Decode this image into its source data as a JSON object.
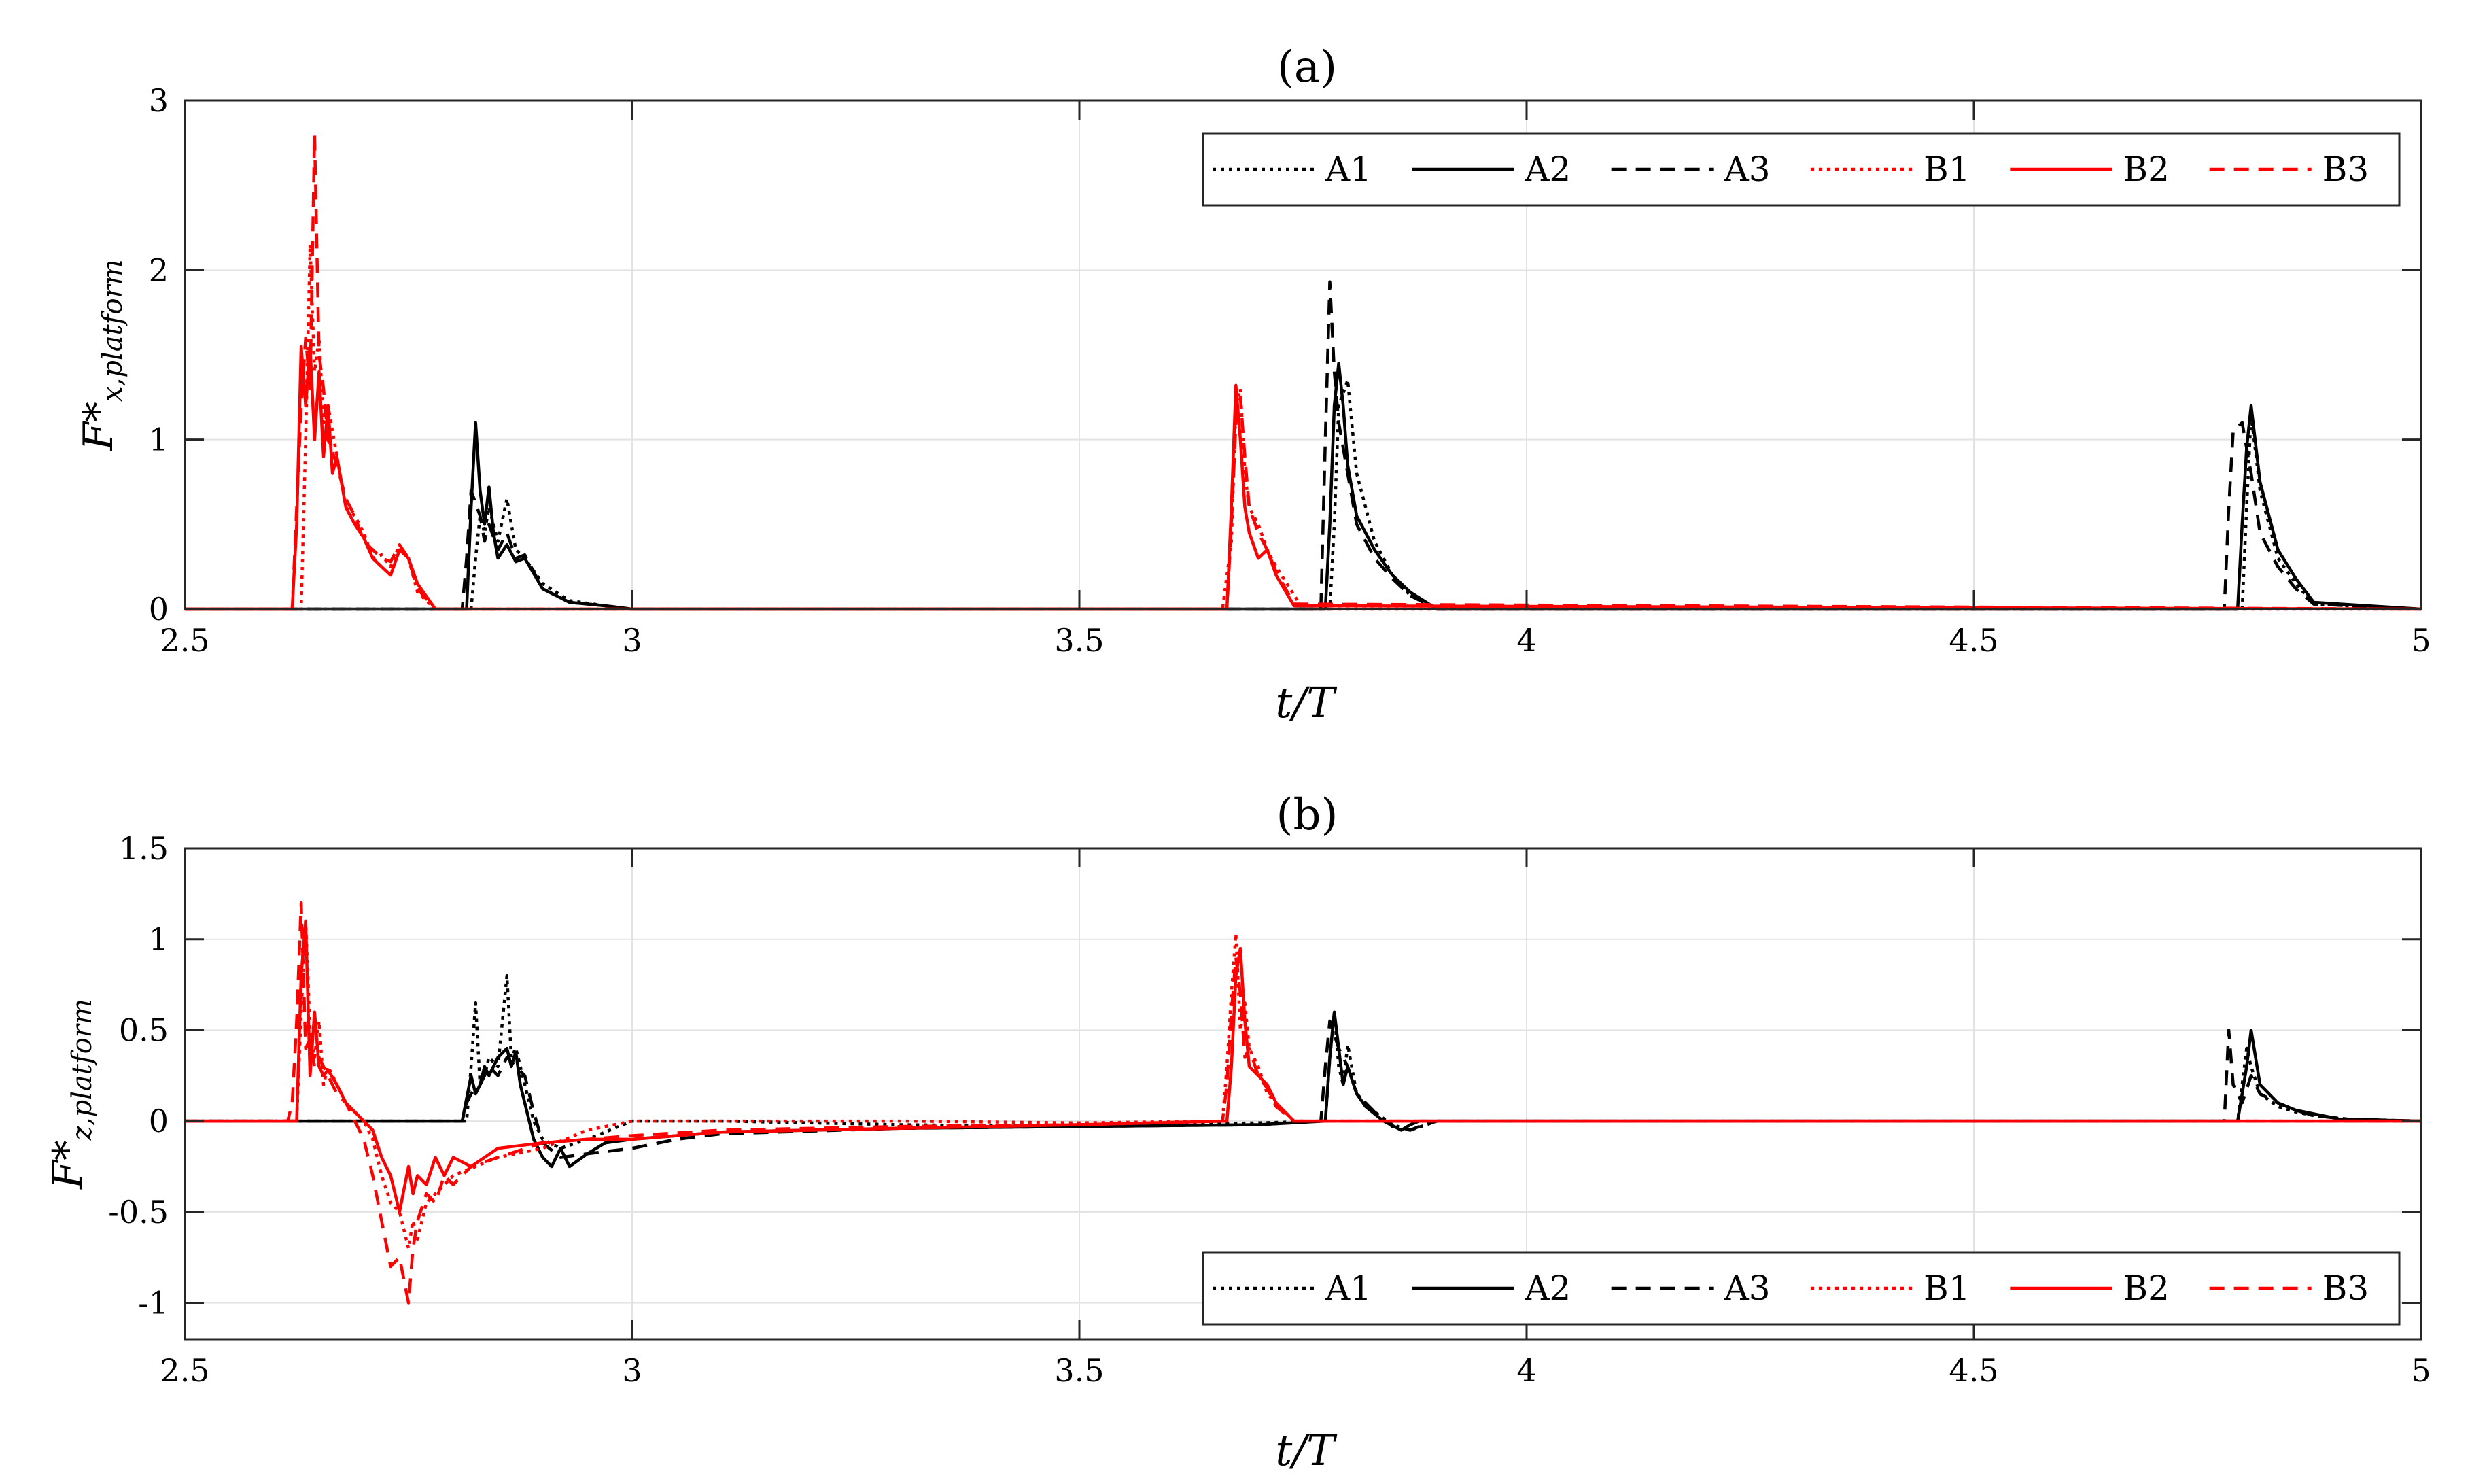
{
  "colors": {
    "black": "#000000",
    "red": "#ff0000",
    "grid": "#e3e3e3",
    "axis": "#262626"
  },
  "legend_entries": [
    {
      "label": "A1",
      "color": "#000000",
      "dash": "dotted"
    },
    {
      "label": "A2",
      "color": "#000000",
      "dash": "solid"
    },
    {
      "label": "A3",
      "color": "#000000",
      "dash": "dashed"
    },
    {
      "label": "B1",
      "color": "#ff0000",
      "dash": "dotted"
    },
    {
      "label": "B2",
      "color": "#ff0000",
      "dash": "solid"
    },
    {
      "label": "B3",
      "color": "#ff0000",
      "dash": "dashed"
    }
  ],
  "chart_data": [
    {
      "type": "line",
      "title": "(a)",
      "xlabel": "t/T",
      "ylabel_main": "F*",
      "ylabel_sub": "x,platform",
      "xlim": [
        2.5,
        5
      ],
      "ylim": [
        0,
        3
      ],
      "xticks": [
        2.5,
        3,
        3.5,
        4,
        4.5,
        5
      ],
      "xtick_labels": [
        "2.5",
        "3",
        "3.5",
        "4",
        "4.5",
        "5"
      ],
      "yticks": [
        0,
        1,
        2,
        3
      ],
      "ytick_labels": [
        "0",
        "1",
        "2",
        "3"
      ],
      "grid": true,
      "legend_position": "top-right",
      "series": [
        {
          "name": "A1",
          "x": [
            2.5,
            2.82,
            2.825,
            2.83,
            2.835,
            2.84,
            2.85,
            2.86,
            2.87,
            2.88,
            2.9,
            2.93,
            2.97,
            3.0,
            3.78,
            3.785,
            3.79,
            3.8,
            3.81,
            3.83,
            3.85,
            3.87,
            3.9,
            4.8,
            4.805,
            4.81,
            4.82,
            4.84,
            4.86,
            4.88,
            5.0
          ],
          "y": [
            0,
            0,
            0.3,
            0.55,
            0.45,
            0.6,
            0.4,
            0.65,
            0.35,
            0.3,
            0.15,
            0.05,
            0.02,
            0,
            0,
            0.5,
            1.2,
            1.35,
            0.8,
            0.4,
            0.2,
            0.08,
            0,
            0,
            0.6,
            1.15,
            0.7,
            0.3,
            0.15,
            0.03,
            0
          ]
        },
        {
          "name": "A2",
          "x": [
            2.5,
            2.815,
            2.82,
            2.825,
            2.83,
            2.835,
            2.84,
            2.845,
            2.85,
            2.86,
            2.87,
            2.88,
            2.9,
            2.93,
            2.97,
            3.0,
            3.775,
            3.78,
            3.785,
            3.79,
            3.795,
            3.8,
            3.81,
            3.83,
            3.85,
            3.87,
            3.9,
            4.795,
            4.8,
            4.805,
            4.81,
            4.82,
            4.84,
            4.86,
            4.88,
            5.0
          ],
          "y": [
            0,
            0,
            0.6,
            1.1,
            0.7,
            0.5,
            0.72,
            0.45,
            0.3,
            0.38,
            0.28,
            0.3,
            0.12,
            0.04,
            0.02,
            0,
            0,
            0.5,
            1.2,
            1.45,
            1.2,
            0.85,
            0.55,
            0.35,
            0.2,
            0.1,
            0,
            0,
            0.5,
            0.95,
            1.2,
            0.75,
            0.35,
            0.18,
            0.04,
            0
          ]
        },
        {
          "name": "A3",
          "x": [
            2.5,
            2.81,
            2.815,
            2.82,
            2.83,
            2.835,
            2.84,
            2.85,
            2.86,
            2.87,
            2.88,
            2.9,
            2.93,
            2.97,
            3.0,
            3.77,
            3.775,
            3.78,
            3.785,
            3.79,
            3.8,
            3.81,
            3.83,
            3.85,
            3.87,
            3.9,
            4.78,
            4.785,
            4.79,
            4.8,
            4.81,
            4.82,
            4.84,
            4.86,
            4.88,
            5.0
          ],
          "y": [
            0,
            0,
            0.3,
            0.7,
            0.55,
            0.4,
            0.5,
            0.35,
            0.45,
            0.3,
            0.32,
            0.12,
            0.04,
            0.02,
            0,
            0,
            1.0,
            1.93,
            1.4,
            1.1,
            0.8,
            0.5,
            0.3,
            0.18,
            0.08,
            0,
            0,
            0.6,
            1.05,
            1.1,
            0.8,
            0.45,
            0.25,
            0.12,
            0.03,
            0
          ]
        },
        {
          "name": "B1",
          "x": [
            2.5,
            2.63,
            2.635,
            2.64,
            2.645,
            2.65,
            2.655,
            2.66,
            2.67,
            2.68,
            2.69,
            2.7,
            2.71,
            2.72,
            2.73,
            2.74,
            2.75,
            2.76,
            2.78,
            3.66,
            3.67,
            3.675,
            3.68,
            3.685,
            3.69,
            3.7,
            3.71,
            3.72,
            3.75,
            5.0
          ],
          "y": [
            0,
            0,
            1.0,
            2.15,
            1.4,
            1.6,
            1.1,
            1.2,
            0.9,
            0.6,
            0.55,
            0.45,
            0.3,
            0.32,
            0.25,
            0.38,
            0.3,
            0.1,
            0,
            0,
            0.4,
            1.2,
            1.3,
            0.8,
            0.6,
            0.5,
            0.35,
            0.25,
            0,
            0
          ]
        },
        {
          "name": "B2",
          "x": [
            2.5,
            2.62,
            2.625,
            2.63,
            2.635,
            2.64,
            2.645,
            2.65,
            2.655,
            2.66,
            2.665,
            2.67,
            2.68,
            2.69,
            2.7,
            2.71,
            2.72,
            2.73,
            2.74,
            2.75,
            2.76,
            2.78,
            3.665,
            3.67,
            3.675,
            3.68,
            3.685,
            3.69,
            3.7,
            3.71,
            3.72,
            3.74,
            5.0
          ],
          "y": [
            0,
            0,
            0.5,
            1.55,
            1.2,
            1.55,
            1.0,
            1.4,
            0.9,
            1.2,
            0.8,
            0.9,
            0.6,
            0.5,
            0.42,
            0.3,
            0.25,
            0.2,
            0.35,
            0.3,
            0.15,
            0,
            0,
            0.6,
            1.32,
            1.0,
            0.6,
            0.45,
            0.3,
            0.35,
            0.2,
            0.02,
            0
          ]
        },
        {
          "name": "B3",
          "x": [
            2.5,
            2.62,
            2.63,
            2.635,
            2.64,
            2.645,
            2.65,
            2.655,
            2.66,
            2.67,
            2.68,
            2.69,
            2.7,
            2.71,
            2.72,
            2.73,
            2.74,
            2.75,
            2.76,
            2.78,
            3.665,
            3.67,
            3.675,
            3.68,
            3.685,
            3.69,
            3.7,
            3.71,
            3.72,
            3.74,
            5.0
          ],
          "y": [
            0,
            0,
            1.2,
            1.6,
            1.3,
            2.8,
            1.5,
            1.3,
            1.0,
            0.85,
            0.65,
            0.55,
            0.4,
            0.35,
            0.3,
            0.28,
            0.38,
            0.3,
            0.12,
            0,
            0,
            0.5,
            1.1,
            1.25,
            0.9,
            0.6,
            0.45,
            0.35,
            0.22,
            0.03,
            0
          ]
        }
      ]
    },
    {
      "type": "line",
      "title": "(b)",
      "xlabel": "t/T",
      "ylabel_main": "F*",
      "ylabel_sub": "z,platform",
      "xlim": [
        2.5,
        5
      ],
      "ylim": [
        -1.2,
        1.5
      ],
      "xticks": [
        2.5,
        3,
        3.5,
        4,
        4.5,
        5
      ],
      "xtick_labels": [
        "2.5",
        "3",
        "3.5",
        "4",
        "4.5",
        "5"
      ],
      "yticks": [
        -1,
        -0.5,
        0,
        0.5,
        1,
        1.5
      ],
      "ytick_labels": [
        "-1",
        "-0.5",
        "0",
        "0.5",
        "1",
        "1.5"
      ],
      "grid": true,
      "legend_position": "bottom-right",
      "series": [
        {
          "name": "A1",
          "x": [
            2.5,
            2.815,
            2.82,
            2.825,
            2.83,
            2.835,
            2.84,
            2.85,
            2.855,
            2.86,
            2.865,
            2.87,
            2.88,
            2.89,
            2.9,
            2.92,
            2.95,
            3.0,
            3.1,
            3.3,
            3.5,
            3.7,
            3.775,
            3.78,
            3.785,
            3.79,
            3.795,
            3.8,
            3.81,
            3.83,
            3.85,
            3.87,
            3.9,
            4.795,
            4.8,
            4.805,
            4.81,
            4.82,
            4.84,
            4.86,
            4.88,
            4.9,
            4.92,
            5.0
          ],
          "y": [
            0,
            0,
            0.3,
            0.65,
            0.2,
            0.25,
            0.35,
            0.3,
            0.55,
            0.8,
            0.35,
            0.4,
            0.2,
            0.0,
            -0.1,
            -0.15,
            -0.1,
            0.0,
            0.0,
            -0.02,
            -0.03,
            -0.01,
            0,
            0.35,
            0.6,
            0.3,
            0.2,
            0.42,
            0.15,
            0.05,
            -0.02,
            -0.05,
            0,
            0,
            0.2,
            0.4,
            0.3,
            0.15,
            0.08,
            0.05,
            0.03,
            0.02,
            0.01,
            0
          ]
        },
        {
          "name": "A2",
          "x": [
            2.5,
            2.81,
            2.82,
            2.825,
            2.83,
            2.835,
            2.84,
            2.85,
            2.86,
            2.865,
            2.87,
            2.875,
            2.88,
            2.89,
            2.9,
            2.91,
            2.92,
            2.93,
            2.95,
            2.97,
            3.0,
            3.1,
            3.3,
            3.5,
            3.7,
            3.775,
            3.78,
            3.785,
            3.79,
            3.795,
            3.8,
            3.81,
            3.82,
            3.84,
            3.86,
            3.87,
            3.88,
            3.9,
            4.795,
            4.8,
            4.805,
            4.81,
            4.82,
            4.84,
            4.86,
            4.88,
            4.9,
            4.91,
            5.0
          ],
          "y": [
            0,
            0,
            0.25,
            0.15,
            0.2,
            0.3,
            0.25,
            0.35,
            0.4,
            0.3,
            0.38,
            0.2,
            0.1,
            -0.1,
            -0.2,
            -0.25,
            -0.15,
            -0.25,
            -0.18,
            -0.12,
            -0.1,
            -0.06,
            -0.04,
            -0.03,
            -0.02,
            0,
            0.35,
            0.6,
            0.4,
            0.2,
            0.3,
            0.15,
            0.08,
            0.0,
            -0.05,
            -0.02,
            0,
            0,
            0,
            0.15,
            0.3,
            0.5,
            0.2,
            0.1,
            0.06,
            0.04,
            0.02,
            0.01,
            0
          ]
        },
        {
          "name": "A3",
          "x": [
            2.5,
            2.81,
            2.815,
            2.82,
            2.83,
            2.84,
            2.85,
            2.86,
            2.87,
            2.88,
            2.89,
            2.9,
            2.92,
            2.95,
            3.0,
            3.05,
            3.1,
            3.3,
            3.5,
            3.7,
            3.77,
            3.775,
            3.78,
            3.79,
            3.8,
            3.81,
            3.83,
            3.85,
            3.87,
            3.88,
            3.9,
            4.78,
            4.785,
            4.79,
            4.8,
            4.81,
            4.82,
            4.84,
            4.86,
            4.88,
            4.9,
            4.92,
            5.0
          ],
          "y": [
            0,
            0,
            0.1,
            0.15,
            0.2,
            0.3,
            0.25,
            0.35,
            0.3,
            0.25,
            0.05,
            -0.12,
            -0.2,
            -0.18,
            -0.15,
            -0.1,
            -0.07,
            -0.04,
            -0.03,
            -0.02,
            0,
            0.3,
            0.55,
            0.4,
            0.3,
            0.15,
            0.05,
            -0.03,
            -0.05,
            -0.03,
            0,
            0,
            0.5,
            0.2,
            0.1,
            0.25,
            0.15,
            0.1,
            0.06,
            0.03,
            0.02,
            0.01,
            0
          ]
        },
        {
          "name": "B1",
          "x": [
            2.5,
            2.625,
            2.63,
            2.635,
            2.64,
            2.645,
            2.65,
            2.655,
            2.66,
            2.67,
            2.68,
            2.69,
            2.7,
            2.71,
            2.72,
            2.73,
            2.74,
            2.75,
            2.755,
            2.76,
            2.77,
            2.78,
            2.8,
            2.85,
            2.9,
            2.95,
            3.0,
            3.1,
            3.3,
            3.5,
            3.66,
            3.665,
            3.67,
            3.675,
            3.68,
            3.685,
            3.69,
            3.7,
            3.71,
            3.72,
            3.74,
            5.0
          ],
          "y": [
            0,
            0,
            0.6,
            1.1,
            0.5,
            0.35,
            0.55,
            0.2,
            0.3,
            0.2,
            0.1,
            0.05,
            0.0,
            -0.1,
            -0.3,
            -0.45,
            -0.5,
            -0.7,
            -0.55,
            -0.65,
            -0.45,
            -0.4,
            -0.3,
            -0.2,
            -0.15,
            -0.05,
            0.0,
            0.0,
            0.0,
            -0.01,
            0,
            0.3,
            0.7,
            1.03,
            0.5,
            0.65,
            0.4,
            0.3,
            0.15,
            0.1,
            0,
            0
          ]
        },
        {
          "name": "B2",
          "x": [
            2.5,
            2.625,
            2.63,
            2.635,
            2.64,
            2.645,
            2.65,
            2.655,
            2.66,
            2.67,
            2.68,
            2.69,
            2.7,
            2.71,
            2.72,
            2.73,
            2.74,
            2.75,
            2.755,
            2.76,
            2.77,
            2.78,
            2.79,
            2.8,
            2.82,
            2.85,
            2.9,
            2.95,
            3.0,
            3.05,
            3.1,
            3.3,
            3.5,
            3.665,
            3.67,
            3.675,
            3.68,
            3.685,
            3.69,
            3.7,
            3.71,
            3.72,
            3.74,
            5.0
          ],
          "y": [
            0,
            0,
            0.8,
            1.1,
            0.25,
            0.6,
            0.3,
            0.25,
            0.28,
            0.2,
            0.1,
            0.05,
            0.0,
            -0.05,
            -0.2,
            -0.3,
            -0.5,
            -0.25,
            -0.4,
            -0.3,
            -0.35,
            -0.2,
            -0.3,
            -0.2,
            -0.25,
            -0.15,
            -0.12,
            -0.1,
            -0.1,
            -0.08,
            -0.06,
            -0.04,
            -0.02,
            0,
            0.3,
            0.8,
            0.95,
            0.55,
            0.3,
            0.25,
            0.2,
            0.1,
            0,
            0
          ]
        },
        {
          "name": "B3",
          "x": [
            2.5,
            2.615,
            2.62,
            2.625,
            2.63,
            2.635,
            2.64,
            2.645,
            2.65,
            2.66,
            2.67,
            2.68,
            2.69,
            2.7,
            2.71,
            2.72,
            2.73,
            2.74,
            2.75,
            2.755,
            2.76,
            2.77,
            2.78,
            2.79,
            2.8,
            2.82,
            2.85,
            2.9,
            2.95,
            3.0,
            3.1,
            3.3,
            3.5,
            3.66,
            3.665,
            3.67,
            3.675,
            3.68,
            3.685,
            3.69,
            3.7,
            3.71,
            3.72,
            3.74,
            5.0
          ],
          "y": [
            0,
            0,
            0.1,
            0.55,
            1.2,
            0.4,
            0.45,
            0.3,
            0.35,
            0.25,
            0.15,
            0.1,
            0.0,
            -0.1,
            -0.3,
            -0.55,
            -0.8,
            -0.75,
            -1.0,
            -0.7,
            -0.55,
            -0.4,
            -0.45,
            -0.3,
            -0.35,
            -0.25,
            -0.2,
            -0.12,
            -0.1,
            -0.08,
            -0.05,
            -0.03,
            -0.02,
            0,
            0.2,
            0.6,
            0.9,
            0.7,
            0.35,
            0.4,
            0.25,
            0.18,
            0.08,
            0.0,
            0
          ]
        }
      ]
    }
  ]
}
